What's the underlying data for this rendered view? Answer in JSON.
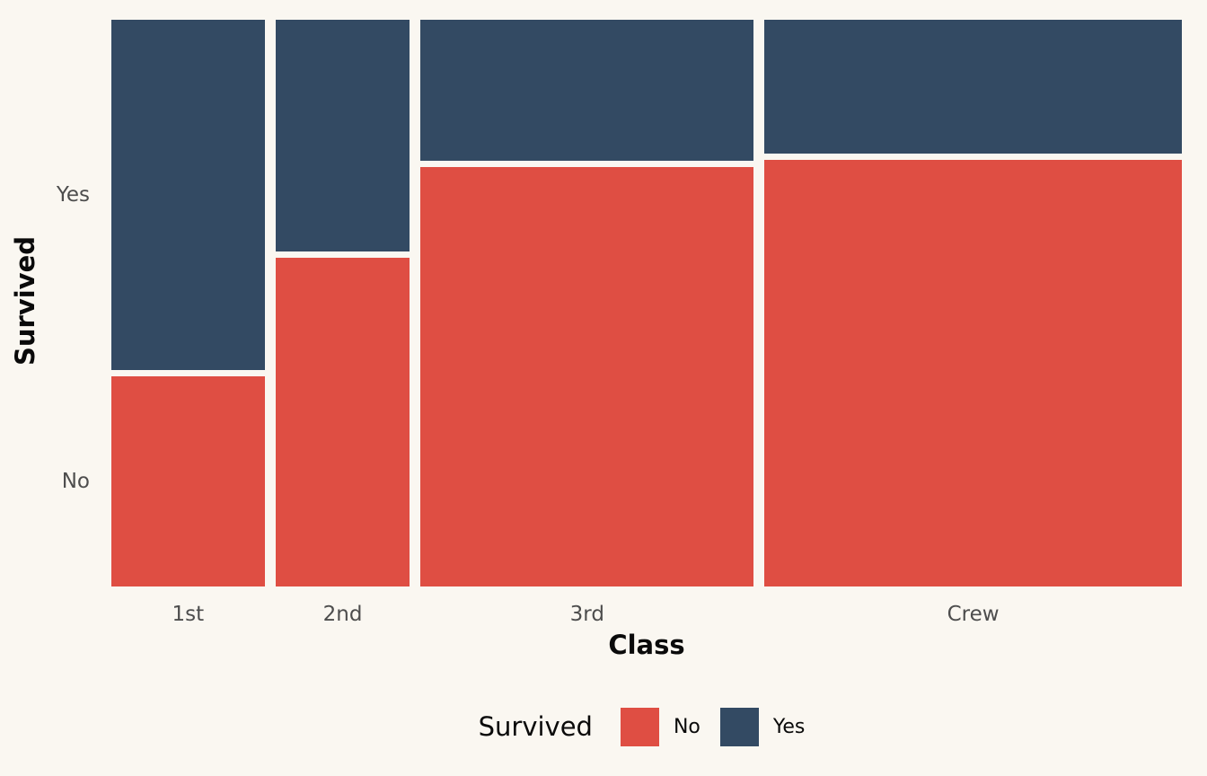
{
  "background_color": "#FAF7F1",
  "chart_data": {
    "type": "mosaic",
    "title": "",
    "xlabel": "Class",
    "ylabel": "Survived",
    "categories": [
      "1st",
      "2nd",
      "3rd",
      "Crew"
    ],
    "series": [
      {
        "name": "No",
        "color": "#DF4E43",
        "values": [
          122,
          167,
          528,
          673
        ]
      },
      {
        "name": "Yes",
        "color": "#334A63",
        "values": [
          203,
          118,
          178,
          212
        ]
      }
    ],
    "category_totals": [
      325,
      285,
      706,
      885
    ],
    "grand_total": 2201,
    "y_tick_labels": [
      "Yes",
      "No"
    ],
    "x_tick_labels": [
      "1st",
      "2nd",
      "3rd",
      "Crew"
    ],
    "orientation": "columns proportional to class size; Yes stacked above No",
    "axis_text_color": "#4D4D4D",
    "axis_title_color": "#0a0a0a",
    "grid": "off",
    "legend": {
      "position": "bottom",
      "title": "Survived",
      "items": [
        {
          "label": "No",
          "color": "#DF4E43"
        },
        {
          "label": "Yes",
          "color": "#334A63"
        }
      ]
    }
  }
}
